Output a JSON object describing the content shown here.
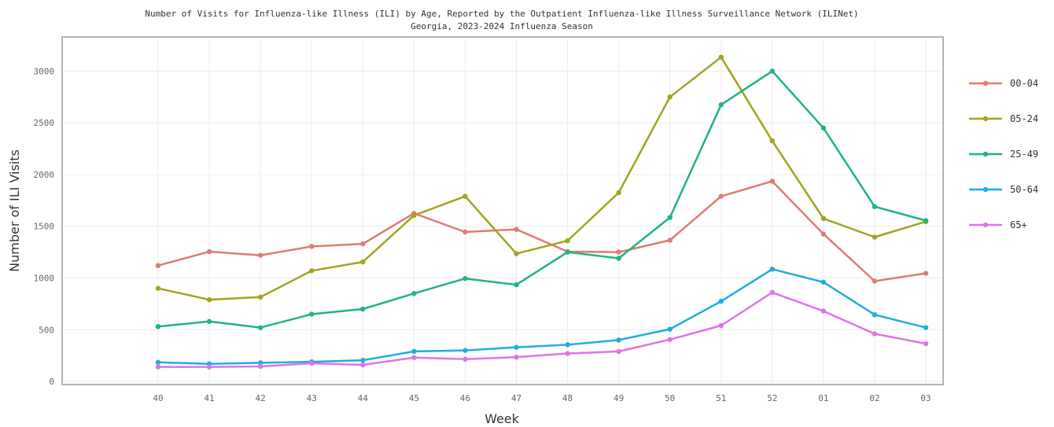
{
  "chart_data": {
    "type": "line",
    "title": "Number of Visits for Influenza-like Illness (ILI) by Age, Reported by the Outpatient Influenza-like Illness Surveillance Network (ILINet)",
    "subtitle": "Georgia, 2023-2024 Influenza Season",
    "xlabel": "Week",
    "ylabel": "Number of ILI Visits",
    "categories": [
      "40",
      "41",
      "42",
      "43",
      "44",
      "45",
      "46",
      "47",
      "48",
      "49",
      "50",
      "51",
      "52",
      "01",
      "02",
      "03"
    ],
    "ylim": [
      -30,
      3330
    ],
    "yticks": [
      0,
      500,
      1000,
      1500,
      2000,
      2500,
      3000
    ],
    "grid": true,
    "legend_position": "right",
    "series": [
      {
        "name": "00-04",
        "color": "#e07b72",
        "values": [
          1120,
          1255,
          1220,
          1305,
          1330,
          1625,
          1445,
          1470,
          1255,
          1250,
          1365,
          1790,
          1935,
          1425,
          970,
          1045
        ]
      },
      {
        "name": "05-24",
        "color": "#a3a321",
        "values": [
          900,
          790,
          815,
          1070,
          1155,
          1605,
          1790,
          1235,
          1360,
          1825,
          2750,
          3135,
          2325,
          1575,
          1395,
          1545
        ]
      },
      {
        "name": "25-49",
        "color": "#1fb57d",
        "values": [
          530,
          580,
          520,
          650,
          700,
          850,
          995,
          935,
          1250,
          1190,
          1585,
          2675,
          3000,
          2450,
          1690,
          1555
        ]
      },
      {
        "name": "50-64",
        "color": "#1eaee0",
        "values": [
          185,
          170,
          180,
          190,
          205,
          290,
          300,
          330,
          355,
          400,
          505,
          775,
          1085,
          960,
          645,
          520
        ]
      },
      {
        "name": "65+",
        "color": "#de74e8",
        "values": [
          140,
          140,
          145,
          175,
          160,
          230,
          215,
          235,
          270,
          290,
          405,
          540,
          860,
          680,
          460,
          365
        ]
      }
    ]
  }
}
